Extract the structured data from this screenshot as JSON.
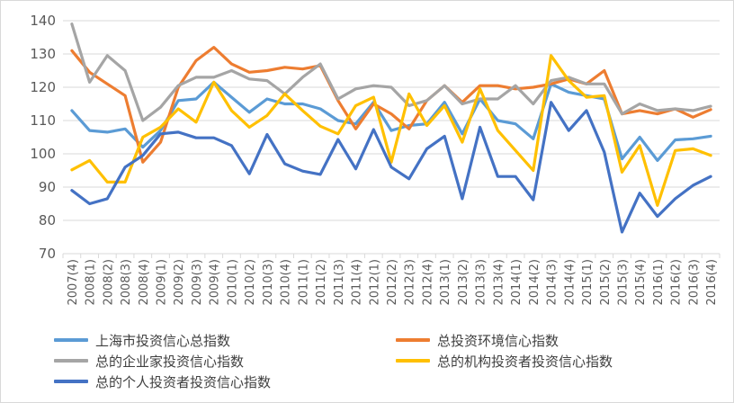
{
  "chart_data": {
    "type": "line",
    "ylim": [
      70,
      140
    ],
    "yticks": [
      70,
      80,
      90,
      100,
      110,
      120,
      130,
      140
    ],
    "grid": true,
    "legend_position": "bottom",
    "categories": [
      "2007(4)",
      "2008(1)",
      "2008(2)",
      "2008(3)",
      "2008(4)",
      "2009(1)",
      "2009(2)",
      "2009(3)",
      "2009(4)",
      "2010(1)",
      "2010(2)",
      "2010(3)",
      "2010(4)",
      "2011(1)",
      "2011(2)",
      "2011(3)",
      "2011(4)",
      "2012(1)",
      "2012(2)",
      "2012(3)",
      "2012(4)",
      "2013(1)",
      "2013(2)",
      "2013(3)",
      "2013(4)",
      "2014(1)",
      "2014(2)",
      "2014(3)",
      "2014(4)",
      "2015(1)",
      "2015(2)",
      "2015(3)",
      "2015(4)",
      "2016(1)",
      "2016(2)",
      "2016(3)",
      "2016(4)"
    ],
    "series": [
      {
        "name": "上海市投资信心总指数",
        "color": "#5b9bd5",
        "values": [
          113,
          107,
          106.5,
          107.5,
          102,
          107,
          116,
          116.5,
          121.5,
          117,
          112.5,
          116.5,
          115,
          115,
          113.5,
          110,
          109,
          115.5,
          107,
          108.5,
          109,
          115.5,
          106,
          116.5,
          110,
          109,
          104.5,
          121,
          118.5,
          117.5,
          116.5,
          98.5,
          105,
          98,
          104.2,
          104.5,
          105.3
        ]
      },
      {
        "name": "总投资环境信心指数",
        "color": "#ed7d31",
        "values": [
          131,
          124.5,
          121,
          117.5,
          97.5,
          103.5,
          120,
          128,
          132,
          127,
          124.5,
          125,
          126,
          125.5,
          126.5,
          116,
          107.5,
          115,
          112,
          107.5,
          116,
          120.5,
          115.5,
          120.5,
          120.5,
          119.5,
          120,
          121,
          122.5,
          121,
          125,
          112,
          113,
          112,
          113.5,
          111,
          113.3
        ]
      },
      {
        "name": "总的企业家投资信心指数",
        "color": "#a5a5a5",
        "values": [
          139,
          121.5,
          129.5,
          125,
          110,
          114,
          120.5,
          123,
          123,
          125,
          122.5,
          122,
          118,
          123,
          127,
          116.5,
          119.5,
          120.5,
          120,
          114.5,
          116,
          120.5,
          115,
          116.5,
          116.5,
          120.5,
          115,
          122,
          123,
          121,
          121,
          112,
          115,
          113,
          113.5,
          113,
          114.3
        ]
      },
      {
        "name": "总的机构投资者投资信心指数",
        "color": "#ffc000",
        "values": [
          95.2,
          98,
          91.5,
          91.5,
          105,
          108,
          113.5,
          109.5,
          121.5,
          113,
          108,
          111.5,
          118,
          113,
          108.3,
          106,
          114.5,
          117,
          97.5,
          118,
          108.5,
          114.5,
          103.5,
          119.5,
          107,
          101,
          95,
          129.5,
          122,
          117,
          117.5,
          94.5,
          102.5,
          84.5,
          101,
          101.5,
          99.5
        ]
      },
      {
        "name": "总的个人投资者投资信心指数",
        "color": "#4472c4",
        "values": [
          89,
          85,
          86.5,
          96,
          99.5,
          106,
          106.5,
          104.8,
          104.8,
          102.5,
          94,
          105.8,
          97,
          94.8,
          93.8,
          104.3,
          95.5,
          107.3,
          96,
          92.5,
          101.5,
          105.3,
          86.5,
          108,
          93.2,
          93.2,
          86.2,
          115.5,
          107,
          113,
          100.5,
          76.5,
          88.2,
          81.2,
          86.5,
          90.5,
          93.2
        ]
      }
    ]
  }
}
